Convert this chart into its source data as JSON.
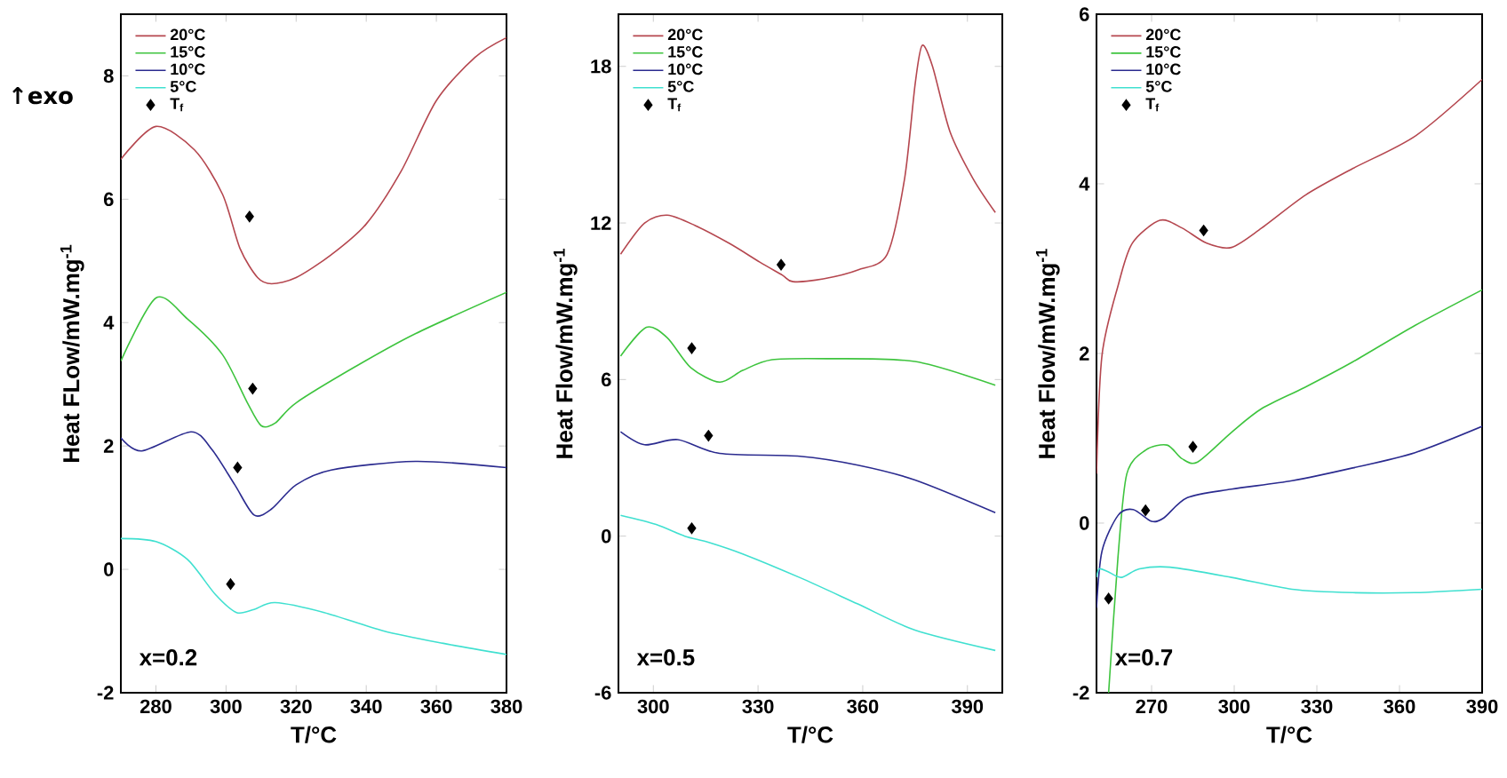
{
  "chart_data": [
    {
      "type": "line",
      "xlabel": "T/°C",
      "ylabel": "Heat FLow/mW.mg$^{-1}$",
      "xlim": [
        270,
        380
      ],
      "ylim": [
        -2,
        9
      ],
      "xticks": [
        280,
        300,
        320,
        340,
        360,
        380
      ],
      "yticks": [
        -2,
        0,
        2,
        4,
        6,
        8
      ],
      "legend": "top left",
      "annotations": [
        "x=0.2",
        "↑exo"
      ],
      "series": [
        {
          "name": "20°C",
          "color": "#b5474f",
          "x": [
            270,
            280,
            291,
            299,
            304,
            309,
            313,
            320,
            330,
            340,
            350,
            360,
            371,
            380
          ],
          "values": [
            6.65,
            7.18,
            6.8,
            6.08,
            5.2,
            4.73,
            4.63,
            4.73,
            5.1,
            5.6,
            6.46,
            7.6,
            8.3,
            8.62
          ]
        },
        {
          "name": "15°C",
          "color": "#3ec43e",
          "x": [
            270,
            280,
            289,
            299,
            306,
            310,
            314,
            320,
            337,
            354,
            380
          ],
          "values": [
            3.38,
            4.4,
            4.06,
            3.48,
            2.71,
            2.33,
            2.37,
            2.7,
            3.29,
            3.82,
            4.49
          ]
        },
        {
          "name": "10°C",
          "color": "#2b2b8f",
          "x": [
            270,
            276,
            290,
            296,
            302.5,
            308,
            313,
            320,
            330,
            354,
            380
          ],
          "values": [
            2.13,
            1.92,
            2.23,
            1.94,
            1.37,
            0.88,
            0.98,
            1.37,
            1.61,
            1.75,
            1.65
          ]
        },
        {
          "name": "5°C",
          "color": "#40e0d0",
          "x": [
            270,
            280,
            289,
            297,
            303,
            308,
            314,
            328,
            345,
            362,
            380
          ],
          "values": [
            0.5,
            0.45,
            0.16,
            -0.41,
            -0.7,
            -0.65,
            -0.54,
            -0.7,
            -1.0,
            -1.2,
            -1.38
          ]
        },
        {
          "name": "T$_{f}$",
          "type": "scatter",
          "marker": "diamond",
          "color": "#000000",
          "x": [
            306.7,
            307.6,
            303.3,
            301.3
          ],
          "values": [
            5.72,
            2.93,
            1.65,
            -0.24
          ]
        }
      ]
    },
    {
      "type": "line",
      "xlabel": "T/°C",
      "ylabel": "Heat Flow/mW.mg$^{-1}$",
      "xlim": [
        290,
        400
      ],
      "ylim": [
        -6,
        20
      ],
      "xticks": [
        300,
        330,
        360,
        390
      ],
      "yticks": [
        -6,
        0,
        6,
        12,
        18
      ],
      "legend": "top left",
      "annotations": [
        "x=0.5"
      ],
      "series": [
        {
          "name": "20°C",
          "color": "#b5474f",
          "x": [
            290.6,
            297.5,
            304,
            312,
            322,
            330.5,
            337,
            340,
            348.7,
            358.6,
            367,
            372,
            375,
            377,
            380,
            385,
            391.6,
            398
          ],
          "values": [
            10.8,
            12.0,
            12.3,
            11.9,
            11.2,
            10.5,
            10.0,
            9.75,
            9.86,
            10.2,
            10.8,
            13.7,
            17.3,
            18.8,
            18.0,
            15.5,
            13.7,
            12.4
          ]
        },
        {
          "name": "15°C",
          "color": "#3ec43e",
          "x": [
            290.6,
            298,
            304,
            310.7,
            319,
            325.6,
            334,
            350,
            375,
            398
          ],
          "values": [
            6.9,
            8.0,
            7.6,
            6.46,
            5.9,
            6.35,
            6.76,
            6.8,
            6.69,
            5.78
          ]
        },
        {
          "name": "10°C",
          "color": "#2b2b8f",
          "x": [
            290.6,
            297.5,
            307,
            319,
            342,
            358.6,
            375,
            398
          ],
          "values": [
            4.0,
            3.5,
            3.7,
            3.17,
            3.06,
            2.72,
            2.15,
            0.9
          ]
        },
        {
          "name": "5°C",
          "color": "#40e0d0",
          "x": [
            290.6,
            300.8,
            309,
            315.7,
            325.6,
            342,
            358.6,
            375,
            398
          ],
          "values": [
            0.8,
            0.45,
            0,
            -0.23,
            -0.68,
            -1.59,
            -2.6,
            -3.6,
            -4.38
          ]
        },
        {
          "name": "T$_{f}$",
          "type": "scatter",
          "marker": "diamond",
          "color": "#000000",
          "x": [
            336.6,
            311,
            315.8,
            311
          ],
          "values": [
            10.4,
            7.2,
            3.85,
            0.3
          ]
        }
      ]
    },
    {
      "type": "line",
      "xlabel": "T/°C",
      "ylabel": "Heat Flow/mW.mg$^{-1}$",
      "xlim": [
        250,
        390
      ],
      "ylim": [
        -2,
        6
      ],
      "xticks": [
        270,
        300,
        330,
        360,
        390
      ],
      "yticks": [
        -2,
        0,
        2,
        4,
        6
      ],
      "legend": "top left",
      "annotations": [
        "x=0.7"
      ],
      "series": [
        {
          "name": "20°C",
          "color": "#b5474f",
          "x": [
            250,
            252,
            258,
            263,
            273,
            281,
            290,
            299,
            310,
            326,
            343,
            366,
            390
          ],
          "values": [
            0.58,
            1.98,
            2.82,
            3.3,
            3.57,
            3.48,
            3.3,
            3.25,
            3.48,
            3.87,
            4.18,
            4.57,
            5.23
          ]
        },
        {
          "name": "15°C",
          "color": "#3ec43e",
          "x": [
            254.4,
            257.8,
            261,
            267.8,
            275.6,
            281,
            286.7,
            299,
            310,
            325.6,
            343,
            365.6,
            390
          ],
          "values": [
            -2,
            -0.4,
            0.58,
            0.86,
            0.92,
            0.76,
            0.72,
            1.07,
            1.35,
            1.6,
            1.9,
            2.33,
            2.75
          ]
        },
        {
          "name": "10°C",
          "color": "#2b2b8f",
          "x": [
            250,
            252,
            257.8,
            263.3,
            270,
            274.4,
            283,
            299,
            321,
            343,
            365.6,
            390
          ],
          "values": [
            -1.0,
            -0.33,
            0.09,
            0.16,
            0.02,
            0.06,
            0.3,
            0.4,
            0.5,
            0.65,
            0.83,
            1.14
          ]
        },
        {
          "name": "5°C",
          "color": "#40e0d0",
          "x": [
            250,
            251,
            254,
            259,
            265.6,
            276.7,
            299,
            321,
            343,
            365.6,
            390
          ],
          "values": [
            -0.64,
            -0.54,
            -0.57,
            -0.64,
            -0.54,
            -0.52,
            -0.64,
            -0.78,
            -0.82,
            -0.82,
            -0.78
          ]
        },
        {
          "name": "T$_{f}$",
          "type": "scatter",
          "marker": "diamond",
          "color": "#000000",
          "x": [
            288.9,
            285,
            267.8,
            254.4
          ],
          "values": [
            3.45,
            0.9,
            0.15,
            -0.89
          ]
        }
      ]
    }
  ]
}
